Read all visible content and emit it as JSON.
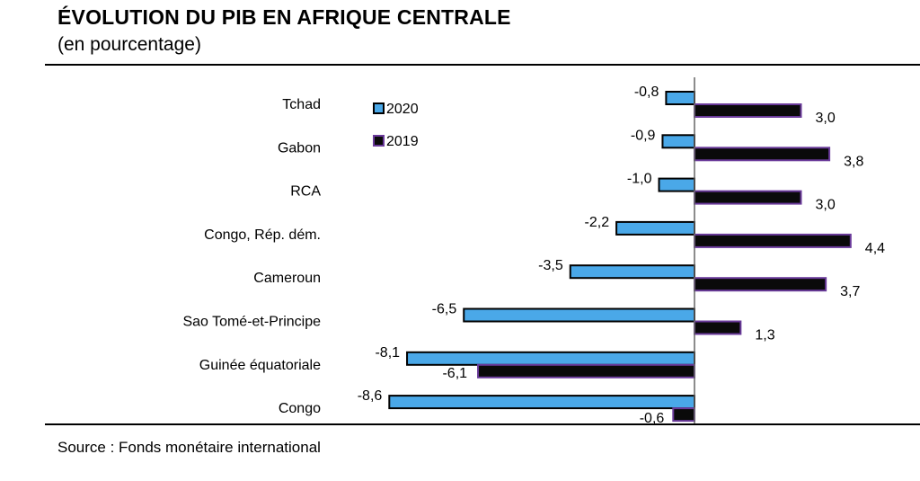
{
  "title": "ÉVOLUTION DU PIB EN AFRIQUE CENTRALE",
  "subtitle": "(en pourcentage)",
  "source": "Source : Fonds monétaire international",
  "colors": {
    "series_2020_fill": "#4aa8e8",
    "series_2019_fill": "#0a0a0a",
    "series_2019_stroke": "#6a3a9a",
    "bar_outline": "#000000",
    "axis": "#666666"
  },
  "chart_data": {
    "type": "bar",
    "orientation": "horizontal",
    "title": "ÉVOLUTION DU PIB EN AFRIQUE CENTRALE",
    "subtitle": "(en pourcentage)",
    "categories": [
      "Tchad",
      "Gabon",
      "RCA",
      "Congo, Rép. dém.",
      "Cameroun",
      "Sao Tomé-et-Principe",
      "Guinée équatoriale",
      "Congo"
    ],
    "series": [
      {
        "name": "2020",
        "values": [
          -0.8,
          -0.9,
          -1.0,
          -2.2,
          -3.5,
          -6.5,
          -8.1,
          -8.6
        ],
        "labels": [
          "-0,8",
          "-0,9",
          "-1,0",
          "-2,2",
          "-3,5",
          "-6,5",
          "-8,1",
          "-8,6"
        ]
      },
      {
        "name": "2019",
        "values": [
          3.0,
          3.8,
          3.0,
          4.4,
          3.7,
          1.3,
          -6.1,
          -0.6
        ],
        "labels": [
          "3,0",
          "3,8",
          "3,0",
          "4,4",
          "3,7",
          "1,3",
          "-6,1",
          "-0,6"
        ]
      }
    ],
    "xlim": [
      -8.6,
      4.4
    ],
    "legend": {
      "placement": "top-left",
      "items": [
        "2020",
        "2019"
      ]
    },
    "grid": false
  }
}
